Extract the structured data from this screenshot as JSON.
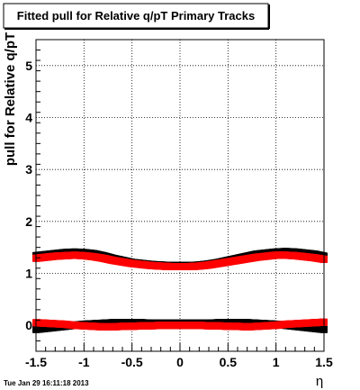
{
  "chart_data": {
    "type": "scatter",
    "title": "Fitted pull for Relative q/pT  Primary Tracks",
    "xlabel": "η",
    "ylabel": "pull for Relative q/pT",
    "xlim": [
      -1.5,
      1.5
    ],
    "ylim": [
      -0.5,
      5.5
    ],
    "x_ticks": [
      -1.5,
      -1,
      -0.5,
      0,
      0.5,
      1,
      1.5
    ],
    "x_tick_labels": [
      "-1.5",
      "-1",
      "-0.5",
      "0",
      "0.5",
      "1",
      "1.5"
    ],
    "y_ticks": [
      0,
      1,
      2,
      3,
      4,
      5
    ],
    "y_tick_labels": [
      "0",
      "1",
      "2",
      "3",
      "4",
      "5"
    ],
    "grid": true,
    "legend": "none",
    "timestamp": "Tue Jan 29 16:11:18 2013",
    "series": [
      {
        "color": "#000000",
        "x": [
          -1.5,
          -1.4,
          -1.3,
          -1.2,
          -1.1,
          -1.0,
          -0.9,
          -0.8,
          -0.7,
          -0.6,
          -0.5,
          -0.4,
          -0.3,
          -0.2,
          -0.1,
          0.0,
          0.1,
          0.2,
          0.3,
          0.4,
          0.5,
          0.6,
          0.7,
          0.8,
          0.9,
          1.0,
          1.1,
          1.2,
          1.3,
          1.4,
          1.5
        ],
        "y": [
          1.34,
          1.36,
          1.38,
          1.4,
          1.41,
          1.4,
          1.38,
          1.34,
          1.29,
          1.25,
          1.21,
          1.19,
          1.17,
          1.16,
          1.15,
          1.15,
          1.15,
          1.16,
          1.18,
          1.21,
          1.25,
          1.29,
          1.33,
          1.37,
          1.39,
          1.41,
          1.42,
          1.41,
          1.39,
          1.37,
          1.33
        ]
      },
      {
        "color": "#ff0000",
        "x": [
          -1.5,
          -1.4,
          -1.3,
          -1.2,
          -1.1,
          -1.0,
          -0.9,
          -0.8,
          -0.7,
          -0.6,
          -0.5,
          -0.4,
          -0.3,
          -0.2,
          -0.1,
          0.0,
          0.1,
          0.2,
          0.3,
          0.4,
          0.5,
          0.6,
          0.7,
          0.8,
          0.9,
          1.0,
          1.1,
          1.2,
          1.3,
          1.4,
          1.5
        ],
        "y": [
          1.29,
          1.31,
          1.33,
          1.34,
          1.35,
          1.34,
          1.32,
          1.29,
          1.25,
          1.22,
          1.19,
          1.17,
          1.15,
          1.14,
          1.13,
          1.13,
          1.13,
          1.14,
          1.16,
          1.19,
          1.22,
          1.25,
          1.28,
          1.31,
          1.33,
          1.35,
          1.35,
          1.34,
          1.32,
          1.3,
          1.27
        ]
      },
      {
        "color": "#000000",
        "x": [
          -1.5,
          -1.4,
          -1.3,
          -1.2,
          -1.1,
          -1.0,
          -0.9,
          -0.8,
          -0.7,
          -0.6,
          -0.5,
          -0.4,
          -0.3,
          -0.2,
          -0.1,
          0.0,
          0.1,
          0.2,
          0.3,
          0.4,
          0.5,
          0.6,
          0.7,
          0.8,
          0.9,
          1.0,
          1.1,
          1.2,
          1.3,
          1.4,
          1.5
        ],
        "y": [
          -0.08,
          -0.06,
          -0.04,
          -0.02,
          0.0,
          0.02,
          0.03,
          0.04,
          0.05,
          0.05,
          0.05,
          0.05,
          0.04,
          0.04,
          0.04,
          0.04,
          0.04,
          0.04,
          0.04,
          0.05,
          0.05,
          0.05,
          0.05,
          0.04,
          0.03,
          0.02,
          0.0,
          -0.02,
          -0.04,
          -0.06,
          -0.08
        ]
      },
      {
        "color": "#ff0000",
        "x": [
          -1.5,
          -1.4,
          -1.3,
          -1.2,
          -1.1,
          -1.0,
          -0.9,
          -0.8,
          -0.7,
          -0.6,
          -0.5,
          -0.4,
          -0.3,
          -0.2,
          -0.1,
          0.0,
          0.1,
          0.2,
          0.3,
          0.4,
          0.5,
          0.6,
          0.7,
          0.8,
          0.9,
          1.0,
          1.1,
          1.2,
          1.3,
          1.4,
          1.5
        ],
        "y": [
          0.05,
          0.04,
          0.03,
          0.02,
          0.0,
          -0.01,
          -0.02,
          -0.03,
          -0.03,
          -0.02,
          -0.02,
          -0.01,
          -0.01,
          0.0,
          0.0,
          0.0,
          0.0,
          0.0,
          -0.01,
          -0.01,
          -0.02,
          -0.02,
          -0.03,
          -0.02,
          -0.01,
          0.0,
          0.02,
          0.03,
          0.04,
          0.05,
          0.06
        ]
      }
    ]
  }
}
